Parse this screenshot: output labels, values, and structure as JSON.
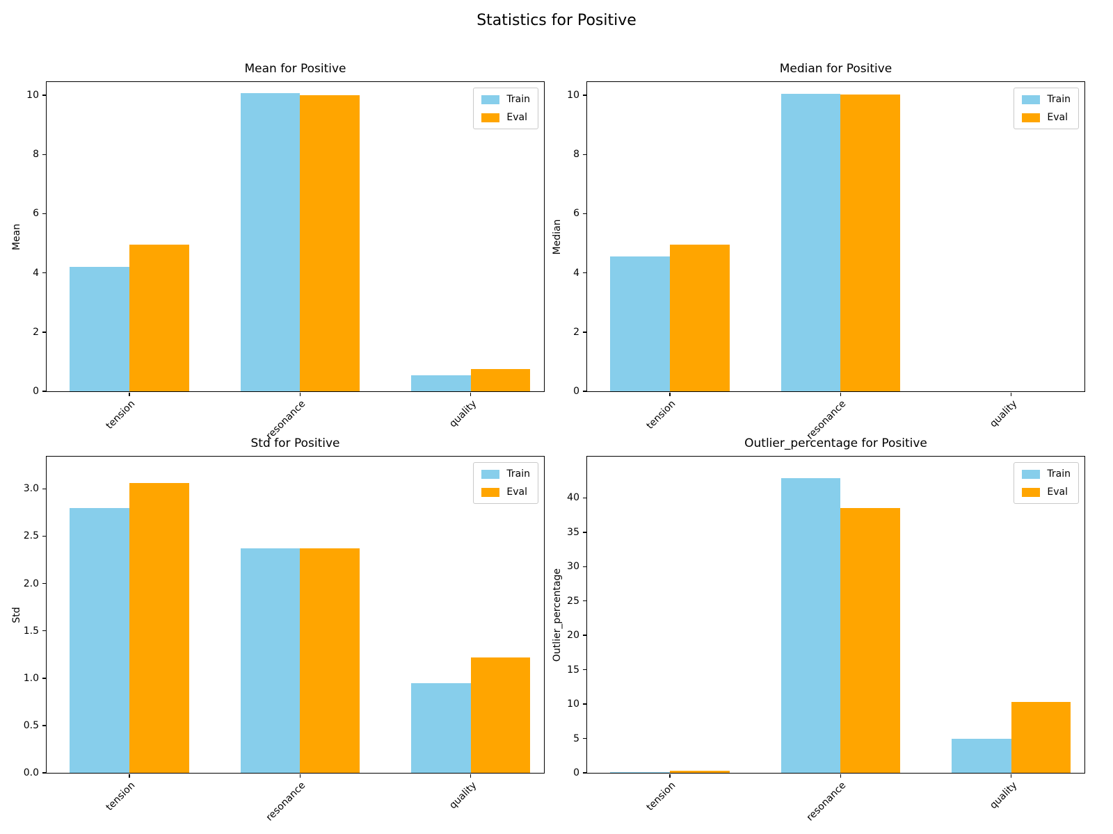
{
  "suptitle": "Statistics for Positive",
  "categories": [
    "tension",
    "resonance",
    "quality"
  ],
  "legend_labels": [
    "Train",
    "Eval"
  ],
  "colors": {
    "train": "#87CEEB",
    "eval": "#FFA500",
    "axes": "#000000",
    "legend_border": "#c9c9c9"
  },
  "chart_data": [
    {
      "type": "bar",
      "title": "Mean for Positive",
      "xlabel": "",
      "ylabel": "Mean",
      "categories": [
        "tension",
        "resonance",
        "quality"
      ],
      "series": [
        {
          "name": "Train",
          "color": "#87CEEB",
          "values": [
            4.2,
            10.07,
            0.55
          ]
        },
        {
          "name": "Eval",
          "color": "#FFA500",
          "values": [
            4.95,
            10.0,
            0.76
          ]
        }
      ],
      "ylim": [
        0,
        10.45
      ],
      "yticks": [
        0,
        2,
        4,
        6,
        8,
        10
      ],
      "ytick_labels": [
        "0",
        "2",
        "4",
        "6",
        "8",
        "10"
      ],
      "legend": [
        "Train",
        "Eval"
      ],
      "legend_position": "upper right",
      "grid": false
    },
    {
      "type": "bar",
      "title": "Median for Positive",
      "xlabel": "",
      "ylabel": "Median",
      "categories": [
        "tension",
        "resonance",
        "quality"
      ],
      "series": [
        {
          "name": "Train",
          "color": "#87CEEB",
          "values": [
            4.55,
            10.05,
            0
          ]
        },
        {
          "name": "Eval",
          "color": "#FFA500",
          "values": [
            4.95,
            10.02,
            0
          ]
        }
      ],
      "ylim": [
        0,
        10.45
      ],
      "yticks": [
        0,
        2,
        4,
        6,
        8,
        10
      ],
      "ytick_labels": [
        "0",
        "2",
        "4",
        "6",
        "8",
        "10"
      ],
      "legend": [
        "Train",
        "Eval"
      ],
      "legend_position": "upper right",
      "grid": false
    },
    {
      "type": "bar",
      "title": "Std for Positive",
      "xlabel": "",
      "ylabel": "Std",
      "categories": [
        "tension",
        "resonance",
        "quality"
      ],
      "series": [
        {
          "name": "Train",
          "color": "#87CEEB",
          "values": [
            2.8,
            2.37,
            0.95
          ]
        },
        {
          "name": "Eval",
          "color": "#FFA500",
          "values": [
            3.06,
            2.37,
            1.22
          ]
        }
      ],
      "ylim": [
        0,
        3.34
      ],
      "yticks": [
        0,
        0.5,
        1,
        1.5,
        2,
        2.5,
        3
      ],
      "ytick_labels": [
        "0.0",
        "0.5",
        "1.0",
        "1.5",
        "2.0",
        "2.5",
        "3.0"
      ],
      "legend": [
        "Train",
        "Eval"
      ],
      "legend_position": "upper right",
      "grid": false
    },
    {
      "type": "bar",
      "title": "Outlier_percentage for Positive",
      "xlabel": "",
      "ylabel": "Outlier_percentage",
      "categories": [
        "tension",
        "resonance",
        "quality"
      ],
      "series": [
        {
          "name": "Train",
          "color": "#87CEEB",
          "values": [
            0.1,
            42.9,
            5.0
          ]
        },
        {
          "name": "Eval",
          "color": "#FFA500",
          "values": [
            0.3,
            38.5,
            10.3
          ]
        }
      ],
      "ylim": [
        0,
        46
      ],
      "yticks": [
        0,
        5,
        10,
        15,
        20,
        25,
        30,
        35,
        40
      ],
      "ytick_labels": [
        "0",
        "5",
        "10",
        "15",
        "20",
        "25",
        "30",
        "35",
        "40"
      ],
      "legend": [
        "Train",
        "Eval"
      ],
      "legend_position": "upper right",
      "grid": false
    }
  ]
}
